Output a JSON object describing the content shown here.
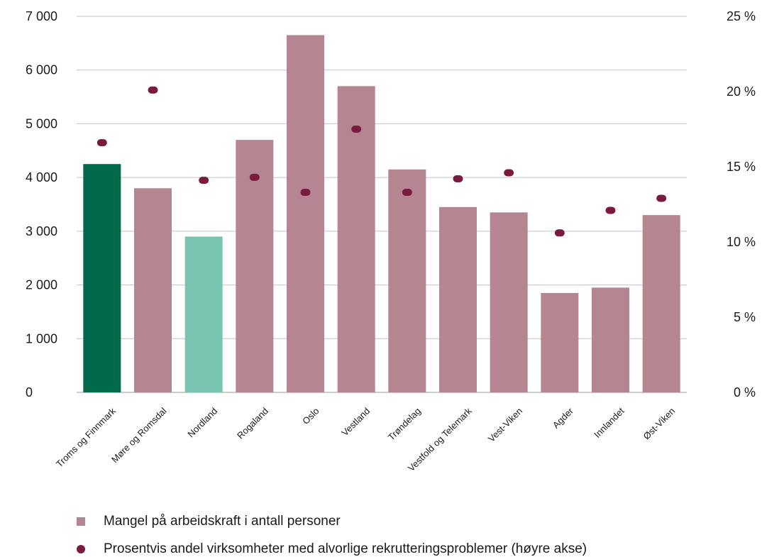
{
  "chart_data": {
    "type": "bar",
    "categories": [
      "Troms og Finnmark",
      "Møre og Romsdal",
      "Nordland",
      "Rogaland",
      "Oslo",
      "Vestland",
      "Trøndelag",
      "Vestfold og Telemark",
      "Vest-Viken",
      "Agder",
      "Innlandet",
      "Øst-Viken"
    ],
    "series": [
      {
        "name": "Mangel på arbeidskraft i antall personer",
        "type": "bar",
        "axis": "left",
        "values": [
          4250,
          3800,
          2900,
          4700,
          6650,
          5700,
          4150,
          3450,
          3350,
          1850,
          1950,
          3300
        ],
        "colors": [
          "#006a4a",
          "#b58591",
          "#79c4b0",
          "#b58591",
          "#b58591",
          "#b58591",
          "#b58591",
          "#b58591",
          "#b58591",
          "#b58591",
          "#b58591",
          "#b58591"
        ]
      },
      {
        "name": "Prosentvis andel virksomheter med alvorlige rekrutteringsproblemer (høyre akse)",
        "type": "dot",
        "axis": "right",
        "color": "#7a1a3e",
        "values": [
          16.6,
          20.1,
          14.1,
          14.3,
          13.3,
          17.5,
          13.3,
          14.2,
          14.6,
          10.6,
          12.1,
          12.9
        ]
      }
    ],
    "left_axis": {
      "ylim": [
        0,
        7000
      ],
      "ticks": [
        0,
        1000,
        2000,
        3000,
        4000,
        5000,
        6000,
        7000
      ],
      "tick_labels": [
        "0",
        "1 000",
        "2 000",
        "3 000",
        "4 000",
        "5 000",
        "6 000",
        "7 000"
      ]
    },
    "right_axis": {
      "ylim": [
        0,
        25
      ],
      "ticks": [
        0,
        5,
        10,
        15,
        20,
        25
      ],
      "tick_labels": [
        "0 %",
        "5 %",
        "10 %",
        "15 %",
        "20 %",
        "25 %"
      ]
    },
    "grid": true,
    "legend_position": "bottom-left"
  },
  "legend": {
    "bar_label": "Mangel på arbeidskraft i antall personer",
    "dot_label": "Prosentvis andel virksomheter med alvorlige rekrutteringsproblemer (høyre akse)",
    "bar_color": "#b58591",
    "dot_color": "#7a1a3e"
  }
}
